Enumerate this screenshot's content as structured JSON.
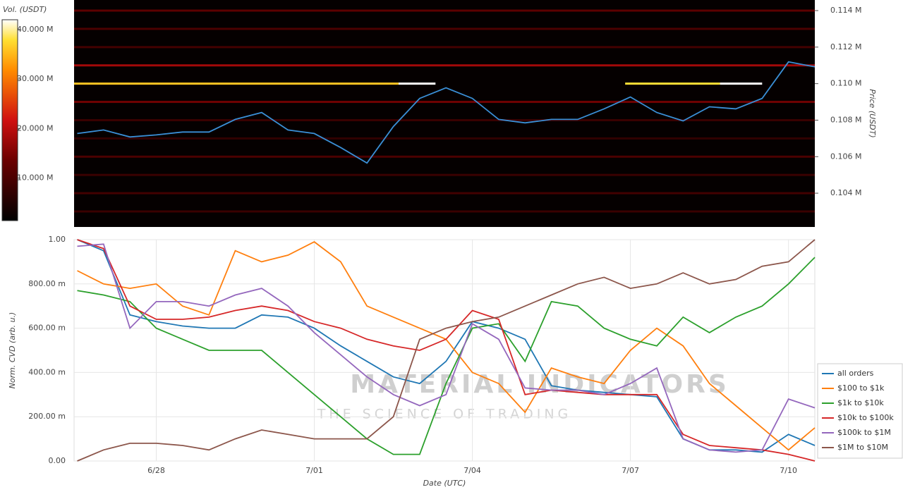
{
  "chart_data": [
    {
      "type": "heatmap-line",
      "colorbar_title": "Vol. (USDT)",
      "y_label": "Price (USDT)",
      "clim": [
        1400000,
        42000000
      ],
      "cticks": [
        {
          "value": 10000000,
          "label": "10.000 M"
        },
        {
          "value": 20000000,
          "label": "20.000 M"
        },
        {
          "value": 30000000,
          "label": "30.000 M"
        },
        {
          "value": 40000000,
          "label": "40.000 M"
        }
      ],
      "xlim": [
        -1.56,
        12.5
      ],
      "ylim": [
        102150,
        114580
      ],
      "yticks": [
        {
          "value": 104000,
          "label": "0.104 M"
        },
        {
          "value": 106000,
          "label": "0.106 M"
        },
        {
          "value": 108000,
          "label": "0.108 M"
        },
        {
          "value": 110000,
          "label": "0.110 M"
        },
        {
          "value": 112000,
          "label": "0.112 M"
        },
        {
          "value": 114000,
          "label": "0.114 M"
        }
      ],
      "levels": [
        {
          "price": 114000,
          "volume": 12000000
        },
        {
          "price": 113000,
          "volume": 10000000
        },
        {
          "price": 112000,
          "volume": 9000000
        },
        {
          "price": 111000,
          "volume": 18000000
        },
        {
          "price": 110000,
          "volume": 36000000,
          "from": -1.56,
          "to": 4.6
        },
        {
          "price": 110000,
          "volume": 42000000,
          "from": 4.6,
          "to": 5.3
        },
        {
          "price": 110000,
          "volume": 38000000,
          "from": 8.9,
          "to": 10.7
        },
        {
          "price": 110000,
          "volume": 42000000,
          "from": 10.7,
          "to": 11.5
        },
        {
          "price": 109000,
          "volume": 14000000
        },
        {
          "price": 108000,
          "volume": 8000000
        },
        {
          "price": 107000,
          "volume": 7000000
        },
        {
          "price": 106000,
          "volume": 10000000
        },
        {
          "price": 105000,
          "volume": 8000000
        },
        {
          "price": 104000,
          "volume": 9000000
        },
        {
          "price": 103000,
          "volume": 8000000
        }
      ],
      "x": [
        -1.5,
        -1,
        -0.5,
        0,
        0.5,
        1,
        1.5,
        2,
        2.5,
        3,
        3.5,
        4,
        4.5,
        5,
        5.5,
        6,
        6.5,
        7,
        7.5,
        8,
        8.5,
        9,
        9.5,
        10,
        10.5,
        11,
        11.5,
        12,
        12.5
      ],
      "series": [
        {
          "color": "#3a8fd6",
          "values": [
            107270,
            107460,
            107080,
            107190,
            107350,
            107350,
            108040,
            108420,
            107460,
            107270,
            106500,
            105650,
            107650,
            109190,
            109770,
            109190,
            108040,
            107850,
            108040,
            108040,
            108620,
            109270,
            108420,
            107960,
            108730,
            108620,
            109190,
            111190,
            110920
          ]
        }
      ]
    },
    {
      "type": "line",
      "x_label": "Date (UTC)",
      "y_label": "Norm. CVD (arb. u.)",
      "watermark": "MATERIAL INDICATORS",
      "watermark_sub": "THE SCIENCE OF TRADING",
      "xlim": [
        -1.56,
        12.5
      ],
      "ylim": [
        0,
        1
      ],
      "xticks": [
        {
          "value": 0,
          "label": "6/28"
        },
        {
          "value": 3,
          "label": "7/01"
        },
        {
          "value": 6,
          "label": "7/04"
        },
        {
          "value": 9,
          "label": "7/07"
        },
        {
          "value": 12,
          "label": "7/10"
        }
      ],
      "yticks": [
        {
          "value": 0,
          "label": "0.00"
        },
        {
          "value": 0.2,
          "label": "200.00 m"
        },
        {
          "value": 0.4,
          "label": "400.00 m"
        },
        {
          "value": 0.6,
          "label": "600.00 m"
        },
        {
          "value": 0.8,
          "label": "800.00 m"
        },
        {
          "value": 1,
          "label": "1.00"
        }
      ],
      "grid": true,
      "x": [
        -1.5,
        -1,
        -0.5,
        0,
        0.5,
        1,
        1.5,
        2,
        2.5,
        3,
        3.5,
        4,
        4.5,
        5,
        5.5,
        6,
        6.5,
        7,
        7.5,
        8,
        8.5,
        9,
        9.5,
        10,
        10.5,
        11,
        11.5,
        12,
        12.5
      ],
      "series": [
        {
          "name": "all orders",
          "color": "#1f77b4",
          "values": [
            1.0,
            0.95,
            0.66,
            0.63,
            0.61,
            0.6,
            0.6,
            0.66,
            0.65,
            0.6,
            0.52,
            0.45,
            0.38,
            0.35,
            0.45,
            0.63,
            0.6,
            0.55,
            0.34,
            0.32,
            0.31,
            0.3,
            0.29,
            0.1,
            0.05,
            0.05,
            0.04,
            0.12,
            0.07
          ]
        },
        {
          "name": "$100 to $1k",
          "color": "#ff7f0e",
          "values": [
            0.86,
            0.8,
            0.78,
            0.8,
            0.7,
            0.66,
            0.95,
            0.9,
            0.93,
            0.99,
            0.9,
            0.7,
            0.65,
            0.6,
            0.55,
            0.4,
            0.35,
            0.22,
            0.42,
            0.38,
            0.35,
            0.5,
            0.6,
            0.52,
            0.35,
            0.25,
            0.15,
            0.05,
            0.15
          ]
        },
        {
          "name": "$1k to $10k",
          "color": "#2ca02c",
          "values": [
            0.77,
            0.75,
            0.72,
            0.6,
            0.55,
            0.5,
            0.5,
            0.5,
            0.4,
            0.3,
            0.2,
            0.1,
            0.03,
            0.03,
            0.35,
            0.6,
            0.62,
            0.45,
            0.72,
            0.7,
            0.6,
            0.55,
            0.52,
            0.65,
            0.58,
            0.65,
            0.7,
            0.8,
            0.92
          ]
        },
        {
          "name": "$10k to $100k",
          "color": "#d62728",
          "values": [
            1.0,
            0.96,
            0.7,
            0.64,
            0.64,
            0.65,
            0.68,
            0.7,
            0.68,
            0.63,
            0.6,
            0.55,
            0.52,
            0.5,
            0.55,
            0.68,
            0.64,
            0.3,
            0.32,
            0.31,
            0.3,
            0.3,
            0.3,
            0.12,
            0.07,
            0.06,
            0.05,
            0.03,
            0.0
          ]
        },
        {
          "name": "$100k to $1M",
          "color": "#9467bd",
          "values": [
            0.97,
            0.98,
            0.6,
            0.72,
            0.72,
            0.7,
            0.75,
            0.78,
            0.7,
            0.58,
            0.48,
            0.38,
            0.3,
            0.25,
            0.3,
            0.62,
            0.55,
            0.33,
            0.32,
            0.32,
            0.3,
            0.35,
            0.42,
            0.1,
            0.05,
            0.04,
            0.05,
            0.28,
            0.24
          ]
        },
        {
          "name": "$1M to $10M",
          "color": "#8c564b",
          "values": [
            0.0,
            0.05,
            0.08,
            0.08,
            0.07,
            0.05,
            0.1,
            0.14,
            0.12,
            0.1,
            0.1,
            0.1,
            0.2,
            0.55,
            0.6,
            0.63,
            0.65,
            0.7,
            0.75,
            0.8,
            0.83,
            0.78,
            0.8,
            0.85,
            0.8,
            0.82,
            0.88,
            0.9,
            1.0
          ]
        }
      ]
    }
  ]
}
